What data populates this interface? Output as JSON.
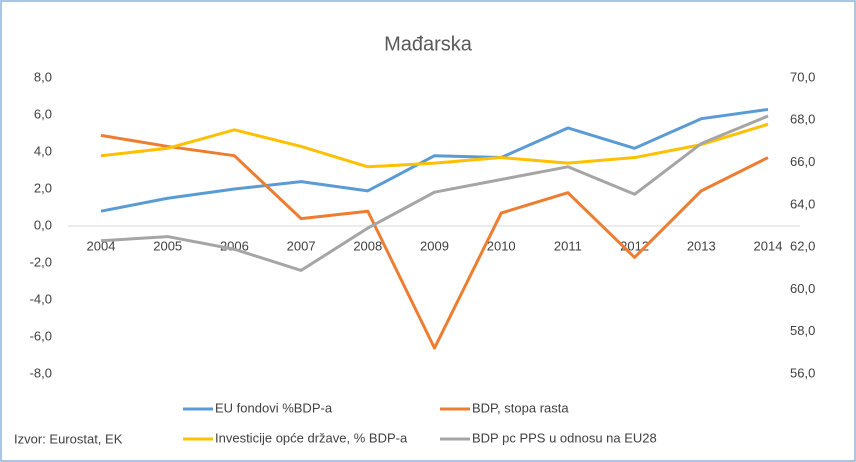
{
  "chart_data": {
    "type": "line",
    "title": "Mađarska",
    "categories": [
      "2004",
      "2005",
      "2006",
      "2007",
      "2008",
      "2009",
      "2010",
      "2011",
      "2012",
      "2013",
      "2014"
    ],
    "series": [
      {
        "name": "EU fondovi %BDP-a",
        "color": "#5b9bd5",
        "values": [
          0.8,
          1.5,
          2.0,
          2.4,
          1.9,
          3.8,
          3.7,
          5.3,
          4.2,
          5.8,
          6.3
        ]
      },
      {
        "name": "BDP, stopa rasta",
        "color": "#ed7d31",
        "values": [
          4.9,
          4.3,
          3.8,
          0.4,
          0.8,
          -6.6,
          0.7,
          1.8,
          -1.7,
          1.9,
          3.7
        ]
      },
      {
        "name": "Investicije opće države, % BDP-a",
        "color": "#ffc000",
        "values": [
          3.8,
          4.2,
          5.2,
          4.3,
          3.2,
          3.4,
          3.7,
          3.4,
          3.7,
          4.4,
          5.5
        ]
      },
      {
        "name": "BDP pc PPS u odnosu na EU28",
        "color": "#a5a5a5",
        "axis": "y2",
        "values": [
          62.3,
          62.5,
          61.9,
          60.9,
          62.9,
          64.6,
          65.2,
          65.8,
          64.5,
          66.9,
          68.2
        ]
      }
    ],
    "ylim": [
      -8,
      8
    ],
    "yticks": [
      {
        "value": 8,
        "label": "8,0"
      },
      {
        "value": 6,
        "label": "6,0"
      },
      {
        "value": 4,
        "label": "4,0"
      },
      {
        "value": 2,
        "label": "2,0"
      },
      {
        "value": 0,
        "label": "0,0"
      },
      {
        "value": -2,
        "label": "-2,0"
      },
      {
        "value": -4,
        "label": "-4,0"
      },
      {
        "value": -6,
        "label": "-6,0"
      },
      {
        "value": -8,
        "label": "-8,0"
      }
    ],
    "y2lim": [
      56,
      70
    ],
    "y2ticks": [
      {
        "value": 70,
        "label": "70,0"
      },
      {
        "value": 68,
        "label": "68,0"
      },
      {
        "value": 66,
        "label": "66,0"
      },
      {
        "value": 64,
        "label": "64,0"
      },
      {
        "value": 62,
        "label": "62,0"
      },
      {
        "value": 60,
        "label": "60,0"
      },
      {
        "value": 58,
        "label": "58,0"
      },
      {
        "value": 56,
        "label": "56,0"
      }
    ],
    "grid": false,
    "annotation": "Izvor: Eurostat, EK"
  }
}
